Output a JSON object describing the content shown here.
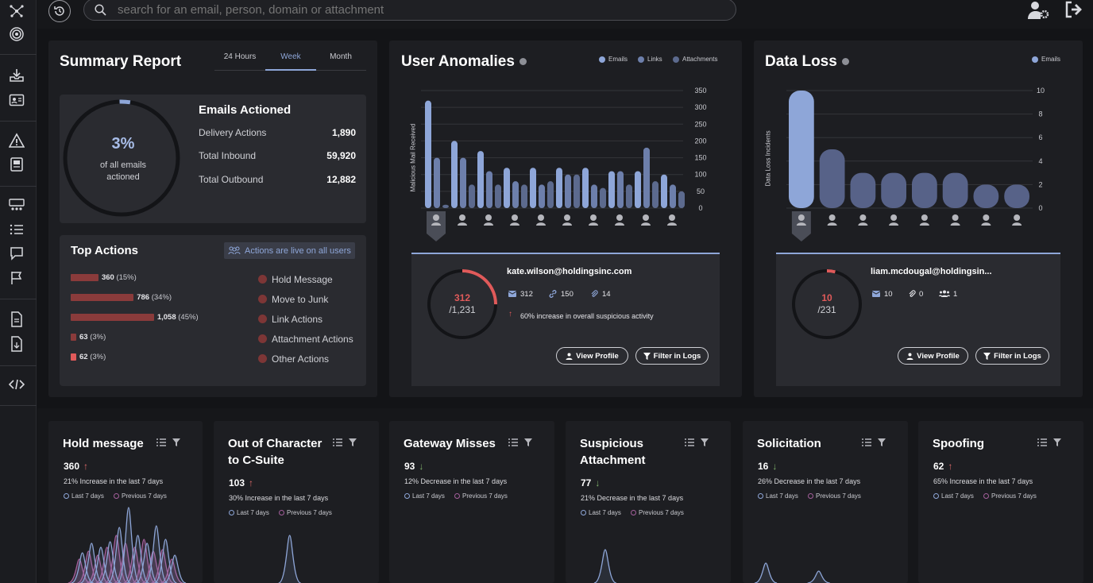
{
  "search": {
    "placeholder": "search for an email, person, domain or attachment"
  },
  "summary": {
    "title": "Summary Report",
    "tabs": [
      "24 Hours",
      "Week",
      "Month"
    ],
    "active_tab": "Week",
    "percent": "3%",
    "percent_caption_1": "of all emails",
    "percent_caption_2": "actioned",
    "emails_actioned": {
      "title": "Emails Actioned",
      "rows": [
        {
          "label": "Delivery Actions",
          "value": "1,890"
        },
        {
          "label": "Total Inbound",
          "value": "59,920"
        },
        {
          "label": "Total Outbound",
          "value": "12,882"
        }
      ]
    },
    "top_actions": {
      "title": "Top Actions",
      "live_badge": "Actions are live on all users",
      "bars": [
        {
          "count": "360",
          "pct": "(15%)",
          "fraction": 0.15
        },
        {
          "count": "786",
          "pct": "(34%)",
          "fraction": 0.34
        },
        {
          "count": "1,058",
          "pct": "(45%)",
          "fraction": 0.45
        },
        {
          "count": "63",
          "pct": "(3%)",
          "fraction": 0.03
        },
        {
          "count": "62",
          "pct": "(3%)",
          "fraction": 0.03
        }
      ],
      "legend": [
        "Hold Message",
        "Move to Junk",
        "Link Actions",
        "Attachment Actions",
        "Other Actions"
      ]
    }
  },
  "anomalies": {
    "title": "User Anomalies",
    "legend": [
      "Emails",
      "Links",
      "Attachments"
    ],
    "ylabel": "Malicious Mail Received",
    "ticks": [
      "350",
      "300",
      "250",
      "200",
      "150",
      "100",
      "50",
      "0"
    ],
    "email": "kate.wilson@holdingsinc.com",
    "ring_value": "312",
    "ring_total": "/1,231",
    "ring_fraction": 0.25,
    "stats": [
      "312",
      "150",
      "14"
    ],
    "note": "60% increase in overall suspicious activity",
    "btn_profile": "View Profile",
    "btn_filter": "Filter in Logs"
  },
  "dataloss": {
    "title": "Data Loss",
    "legend": [
      "Emails"
    ],
    "ylabel": "Data Loss Incidents",
    "ticks": [
      "10",
      "8",
      "6",
      "4",
      "2",
      "0"
    ],
    "email": "liam.mcdougal@holdingsin...",
    "ring_value": "10",
    "ring_total": "/231",
    "ring_fraction": 0.04,
    "stats": [
      "10",
      "0",
      "1"
    ],
    "btn_profile": "View Profile",
    "btn_filter": "Filter in Logs"
  },
  "bottom_cards": [
    {
      "title": "Hold message",
      "value": "360",
      "trend": "up",
      "desc": "21% Increase in the last 7 days"
    },
    {
      "title": "Out of Character to C-Suite",
      "value": "103",
      "trend": "up",
      "desc": "30% Increase in the last 7 days"
    },
    {
      "title": "Gateway Misses",
      "value": "93",
      "trend": "down",
      "desc": "12% Decrease in the last 7 days"
    },
    {
      "title": "Suspicious Attachment",
      "value": "77",
      "trend": "down",
      "desc": "21% Decrease in the last 7 days"
    },
    {
      "title": "Solicitation",
      "value": "16",
      "trend": "down",
      "desc": "26% Decrease in the last 7 days"
    },
    {
      "title": "Spoofing",
      "value": "62",
      "trend": "up",
      "desc": "65% Increase in the last 7 days"
    }
  ],
  "legend_last7": "Last 7 days",
  "legend_prev7": "Previous 7 days",
  "colors": {
    "accent": "#8ea6d8",
    "red": "#e05a5a",
    "action": "#8a3b3b"
  }
}
